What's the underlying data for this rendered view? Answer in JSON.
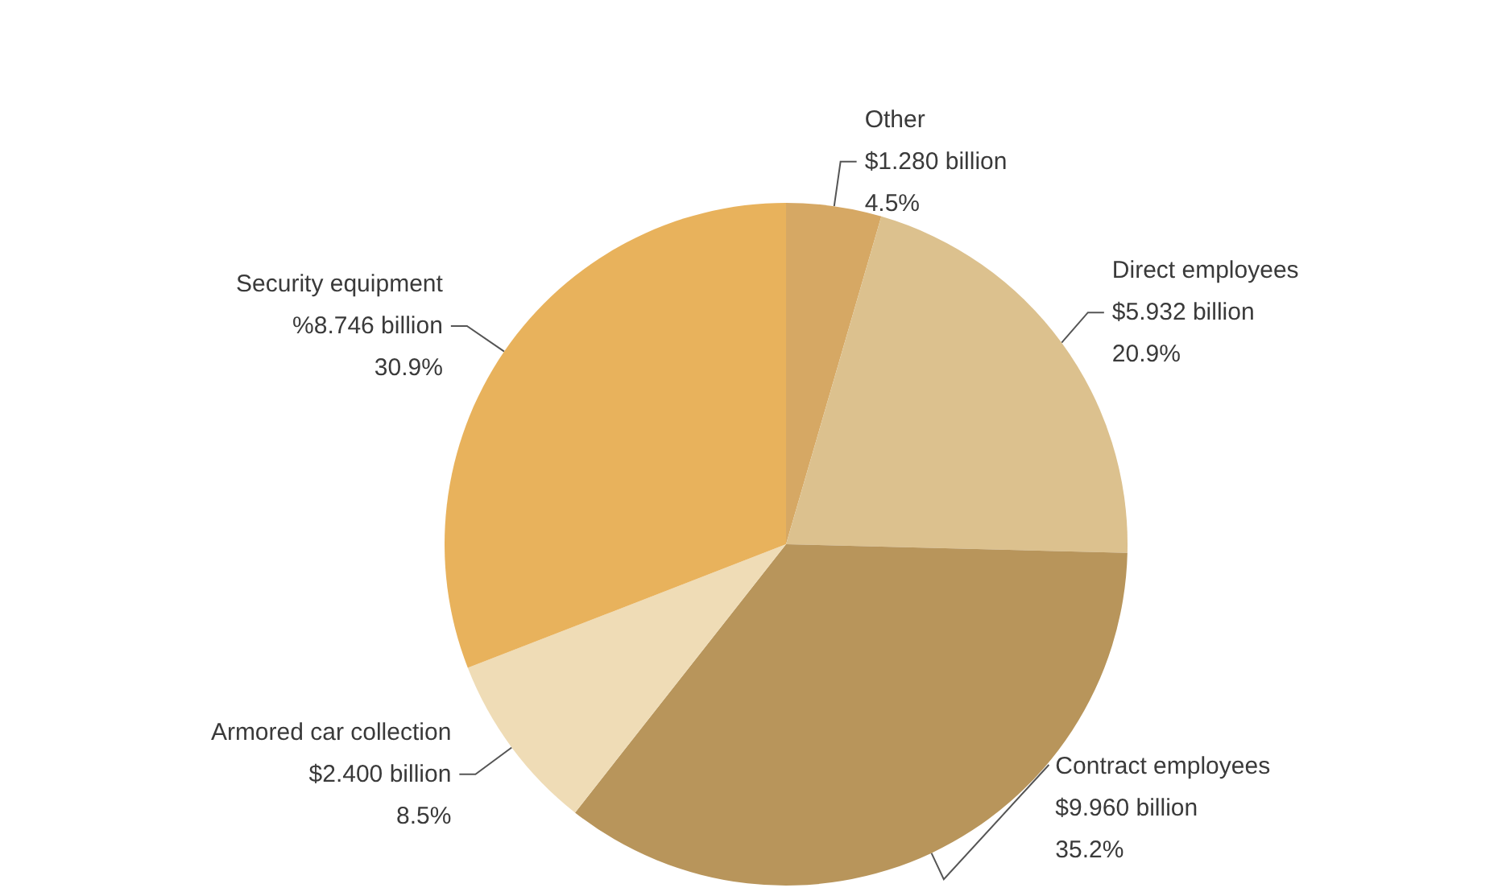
{
  "chart_data": {
    "type": "pie",
    "categories": [
      "Other",
      "Direct employees",
      "Contract employees",
      "Armored car collection",
      "Security equipment"
    ],
    "values": [
      4.5,
      20.9,
      35.2,
      8.5,
      30.9
    ],
    "value_labels": [
      "$1.280 billion\n4.5%",
      "$5.932 billion\n20.9%",
      "$9.960 billion\n35.2%",
      "$2.400 billion\n8.5%",
      "%8.746 billion\n30.9%"
    ],
    "colors": [
      "#d6a864",
      "#dcc18e",
      "#b8955b",
      "#efdcb6",
      "#e8b25c"
    ],
    "legend": false
  }
}
